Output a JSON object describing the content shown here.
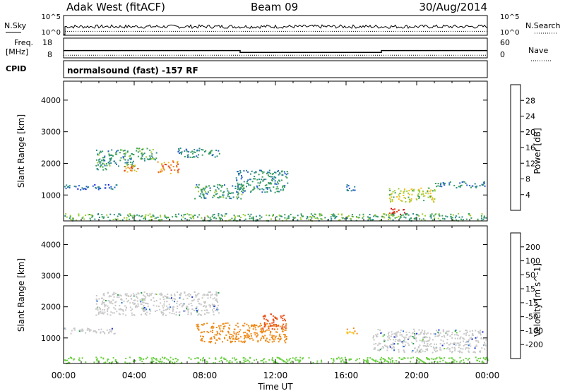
{
  "header": {
    "station": "Adak West (fitACF)",
    "beam": "Beam 09",
    "date": "30/Aug/2014"
  },
  "small_panels": {
    "nsky_label": "N.Sky",
    "nsearch_label": "N.Search",
    "nsky_ticks": [
      "10^5",
      "10^0"
    ],
    "nsearch_ticks": [
      "10^5",
      "10^0"
    ],
    "freq_label_1": "Freq.",
    "freq_label_2": "[MHz]",
    "freq_ticks": [
      "18",
      "8"
    ],
    "nave_label": "Nave",
    "nave_ticks": [
      "60",
      "0"
    ],
    "cpid_label": "CPID",
    "cpid_text": "normalsound (fast) -157 RF"
  },
  "colors": {
    "ground_scatter": "#c8c8c8",
    "power_scale": [
      "#1010e6",
      "#2a5fd0",
      "#2e8a8a",
      "#3aa05a",
      "#9ccc33",
      "#f0c020",
      "#f08a18",
      "#e8401a",
      "#dd0a0a"
    ],
    "velocity_scale": [
      "#1a2fd8",
      "#2a6fd8",
      "#2a9a4a",
      "#6ad040",
      "#c8c8c8",
      "#f5c020",
      "#f08a18",
      "#e8501a",
      "#dd0a0a"
    ]
  },
  "chart_data": [
    {
      "type": "line",
      "panel": "N.Sky / N.Search",
      "x_range_hours": [
        0,
        24
      ],
      "y_scale": "log",
      "ylim_left": [
        "10^0",
        "10^5"
      ],
      "ylim_right": [
        "10^0",
        "10^5"
      ],
      "series": [
        {
          "name": "N.Sky",
          "style": "solid",
          "level_fraction": 0.35
        },
        {
          "name": "N.Search",
          "style": "dotted",
          "level_fraction": 0.2
        }
      ]
    },
    {
      "type": "line",
      "panel": "Freq. / Nave",
      "x_range_hours": [
        0,
        24
      ],
      "ylim_left": [
        8,
        18
      ],
      "ylim_right": [
        0,
        60
      ],
      "series": [
        {
          "name": "Freq.",
          "style": "solid",
          "x": [
            0,
            10.0,
            10.0,
            18.0,
            18.0,
            24
          ],
          "y": [
            11.7,
            11.7,
            10.8,
            10.8,
            11.7,
            11.7
          ]
        },
        {
          "name": "Nave",
          "style": "dotted",
          "x": [
            0,
            24
          ],
          "y": [
            8,
            8
          ]
        }
      ]
    },
    {
      "type": "heatmap",
      "panel": "Power",
      "xlabel": "",
      "ylabel": "Slant Range [km]",
      "xlim_hours": [
        0,
        24
      ],
      "ylim_km": [
        180,
        4600
      ],
      "y_ticks": [
        1000,
        2000,
        3000,
        4000
      ],
      "colorbar": {
        "label": "Power [dB]",
        "ticks": [
          4,
          8,
          12,
          16,
          20,
          24,
          28
        ],
        "range": [
          0,
          30
        ]
      },
      "echo_regions": [
        {
          "t_start": 0.0,
          "t_end": 3.0,
          "r_min": 1180,
          "r_max": 1350,
          "value": 6
        },
        {
          "t_start": 1.8,
          "t_end": 4.0,
          "r_min": 1800,
          "r_max": 2450,
          "value": 10
        },
        {
          "t_start": 3.3,
          "t_end": 4.2,
          "r_min": 1750,
          "r_max": 2000,
          "value": 22
        },
        {
          "t_start": 4.0,
          "t_end": 5.3,
          "r_min": 2100,
          "r_max": 2500,
          "value": 12
        },
        {
          "t_start": 5.3,
          "t_end": 6.5,
          "r_min": 1700,
          "r_max": 2100,
          "value": 22
        },
        {
          "t_start": 6.4,
          "t_end": 8.8,
          "r_min": 2200,
          "r_max": 2500,
          "value": 9
        },
        {
          "t_start": 7.4,
          "t_end": 10.2,
          "r_min": 900,
          "r_max": 1350,
          "value": 10
        },
        {
          "t_start": 9.7,
          "t_end": 12.7,
          "r_min": 1100,
          "r_max": 1800,
          "value": 9
        },
        {
          "t_start": 16.0,
          "t_end": 16.5,
          "r_min": 1150,
          "r_max": 1350,
          "value": 7
        },
        {
          "t_start": 18.3,
          "t_end": 19.4,
          "r_min": 400,
          "r_max": 600,
          "value": 27
        },
        {
          "t_start": 18.4,
          "t_end": 21.0,
          "r_min": 800,
          "r_max": 1250,
          "value": 16
        },
        {
          "t_start": 21.0,
          "t_end": 23.9,
          "r_min": 1250,
          "r_max": 1450,
          "value": 8
        },
        {
          "t_start": 0.0,
          "t_end": 24.0,
          "r_min": 200,
          "r_max": 430,
          "value": 12
        }
      ]
    },
    {
      "type": "heatmap",
      "panel": "Velocity",
      "xlabel": "Time UT",
      "ylabel": "Slant Range [km]",
      "xlim_hours": [
        0,
        24
      ],
      "x_ticks": [
        "00:00",
        "04:00",
        "08:00",
        "12:00",
        "16:00",
        "20:00",
        "00:00"
      ],
      "ylim_km": [
        180,
        4600
      ],
      "y_ticks": [
        1000,
        2000,
        3000,
        4000
      ],
      "colorbar": {
        "label": "Velocity [m s^-1]",
        "ticks": [
          "200",
          "100",
          "50",
          "15",
          "-15",
          "-50",
          "-100",
          "-200"
        ],
        "range": [
          -250,
          250
        ]
      },
      "echo_regions": [
        {
          "t_start": 0.0,
          "t_end": 3.0,
          "r_min": 1150,
          "r_max": 1350,
          "value": 0
        },
        {
          "t_start": 1.8,
          "t_end": 8.8,
          "r_min": 1750,
          "r_max": 2500,
          "value": 0
        },
        {
          "t_start": 7.5,
          "t_end": 12.6,
          "r_min": 850,
          "r_max": 1500,
          "value": -75
        },
        {
          "t_start": 11.2,
          "t_end": 12.6,
          "r_min": 1300,
          "r_max": 1800,
          "value": -160
        },
        {
          "t_start": 16.0,
          "t_end": 16.6,
          "r_min": 1150,
          "r_max": 1350,
          "value": -45
        },
        {
          "t_start": 17.5,
          "t_end": 23.9,
          "r_min": 550,
          "r_max": 1300,
          "value": 0
        },
        {
          "t_start": 0.0,
          "t_end": 24.0,
          "r_min": 200,
          "r_max": 400,
          "value": 30
        }
      ]
    }
  ]
}
